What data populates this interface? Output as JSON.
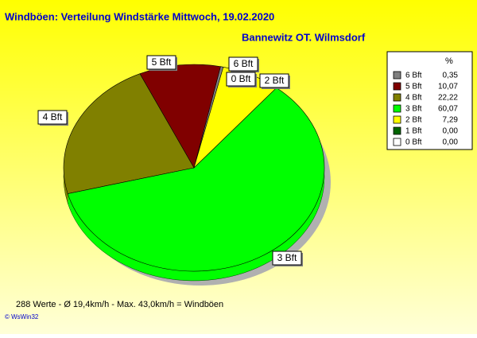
{
  "chart_data": {
    "type": "pie",
    "title": "Windböen: Verteilung Windstärke  Mittwoch, 19.02.2020",
    "subtitle": "Bannewitz OT. Wilmsdorf",
    "legend_header": "%",
    "categories": [
      "6 Bft",
      "5 Bft",
      "4 Bft",
      "3 Bft",
      "2 Bft",
      "1 Bft",
      "0 Bft"
    ],
    "values": [
      0.35,
      10.07,
      22.22,
      60.07,
      7.29,
      0.0,
      0.0
    ],
    "value_labels": [
      "0,35",
      "10,07",
      "22,22",
      "60,07",
      "7,29",
      "0,00",
      "0,00"
    ],
    "colors": [
      "#808080",
      "#800000",
      "#808000",
      "#00ff00",
      "#ffff00",
      "#006400",
      "#ffffff"
    ],
    "footer": "288 Werte   -   Ø 19,4km/h  -  Max. 43,0km/h = Windböen",
    "credit": "© WsWin32"
  }
}
